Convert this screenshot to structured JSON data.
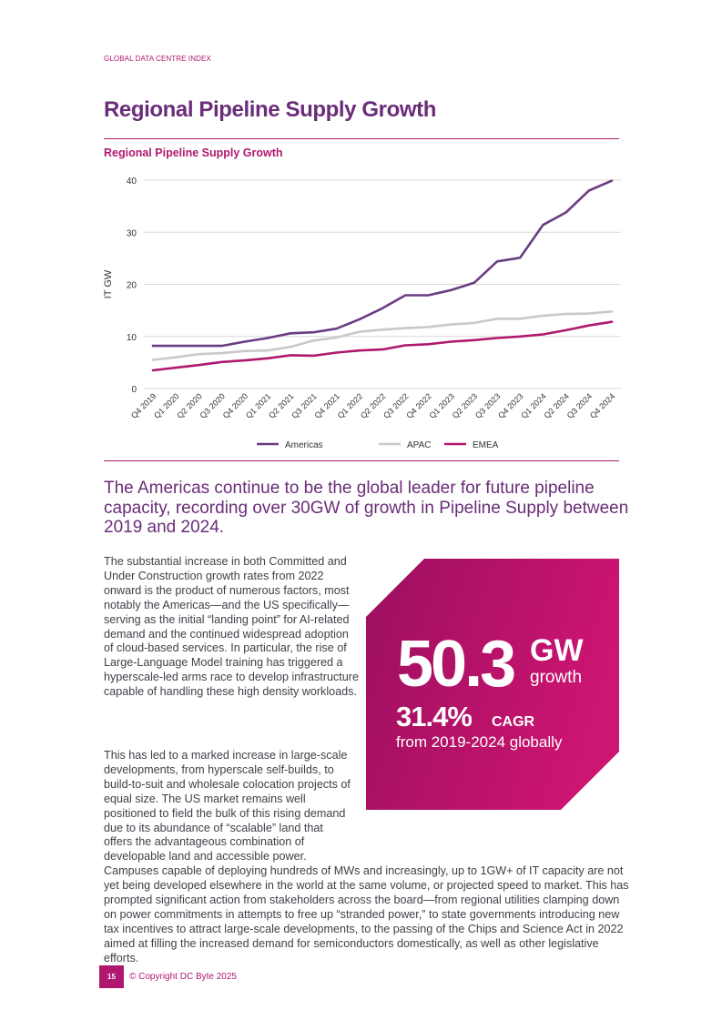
{
  "header": {
    "label": "GLOBAL DATA CENTRE INDEX"
  },
  "page": {
    "title": "Regional Pipeline Supply Growth"
  },
  "chart_data": {
    "type": "line",
    "title": "Regional Pipeline Supply Growth",
    "xlabel": "",
    "ylabel": "IT GW",
    "ylim": [
      0,
      40
    ],
    "yticks": [
      0,
      10,
      20,
      30,
      40
    ],
    "grid": true,
    "legend_position": "bottom-center",
    "categories": [
      "Q4 2019",
      "Q1 2020",
      "Q2 2020",
      "Q3 2020",
      "Q4 2020",
      "Q1 2021",
      "Q2 2021",
      "Q3 2021",
      "Q4 2021",
      "Q1 2022",
      "Q2 2022",
      "Q3 2022",
      "Q4 2022",
      "Q1 2023",
      "Q2 2023",
      "Q3 2023",
      "Q4 2023",
      "Q1 2024",
      "Q2 2024",
      "Q3 2024",
      "Q4 2024"
    ],
    "series": [
      {
        "name": "Americas",
        "color": "#6a3d83",
        "values": [
          8.2,
          8.2,
          8.2,
          8.2,
          9.0,
          9.7,
          10.6,
          10.8,
          11.5,
          13.3,
          15.4,
          17.9,
          17.9,
          18.9,
          20.3,
          24.4,
          25.1,
          31.4,
          33.8,
          38.0,
          39.9
        ]
      },
      {
        "name": "APAC",
        "color": "#c9c9c9",
        "values": [
          5.5,
          6.0,
          6.6,
          6.8,
          7.2,
          7.3,
          8.0,
          9.2,
          9.8,
          10.9,
          11.3,
          11.6,
          11.8,
          12.3,
          12.6,
          13.4,
          13.4,
          14.0,
          14.3,
          14.4,
          14.8
        ]
      },
      {
        "name": "EMEA",
        "color": "#b01870",
        "values": [
          3.5,
          4.0,
          4.5,
          5.1,
          5.4,
          5.8,
          6.4,
          6.3,
          6.9,
          7.3,
          7.5,
          8.3,
          8.5,
          9.0,
          9.3,
          9.7,
          10.0,
          10.4,
          11.2,
          12.1,
          12.8
        ]
      }
    ]
  },
  "lead": "The Americas continue to be the global leader for future pipeline capacity, recording over 30GW of growth in Pipeline Supply between 2019 and 2024.",
  "body": {
    "p1": "The substantial increase in both Committed and Under Construction growth rates from 2022 onward is the product of numerous factors, most notably the Americas—and the US specifically—serving as the initial “landing point” for AI-related demand and the continued widespread adoption of cloud-based services. In particular, the rise of Large-Language Model training has triggered a hyperscale-led arms race to develop infrastructure capable of handling these high density workloads.",
    "p2": "This has led to a marked increase in large-scale developments, from hyperscale self-builds, to build-to-suit and wholesale colocation projects of equal size. The US market remains well positioned to field the bulk of this rising demand due to its abundance of “scalable” land that offers the advantageous combination of developable land and accessible power. Campuses capable of deploying hundreds of MWs and increasingly, up to 1GW+ of IT capacity are not yet being developed elsewhere in the world at the same volume, or projected speed to market. This has prompted significant action from stakeholders across the board—from regional utilities clamping down on power commitments in attempts to free up “stranded power,” to state governments introducing new tax incentives to attract large-scale developments, to the passing of the Chips and Science Act in 2022 aimed at filling the increased demand for semiconductors domestically, as well as other legislative efforts."
  },
  "stat": {
    "number": "50.3",
    "unit": "GW",
    "unit_sub": "growth",
    "cagr": "31.4%",
    "cagr_label": "CAGR",
    "cagr_sub": "from 2019-2024 globally"
  },
  "footer": {
    "page_number": "15",
    "copyright": "© Copyright DC Byte 2025"
  },
  "colors": {
    "brand_magenta": "#b01870",
    "brand_purple": "#6a2d78"
  }
}
